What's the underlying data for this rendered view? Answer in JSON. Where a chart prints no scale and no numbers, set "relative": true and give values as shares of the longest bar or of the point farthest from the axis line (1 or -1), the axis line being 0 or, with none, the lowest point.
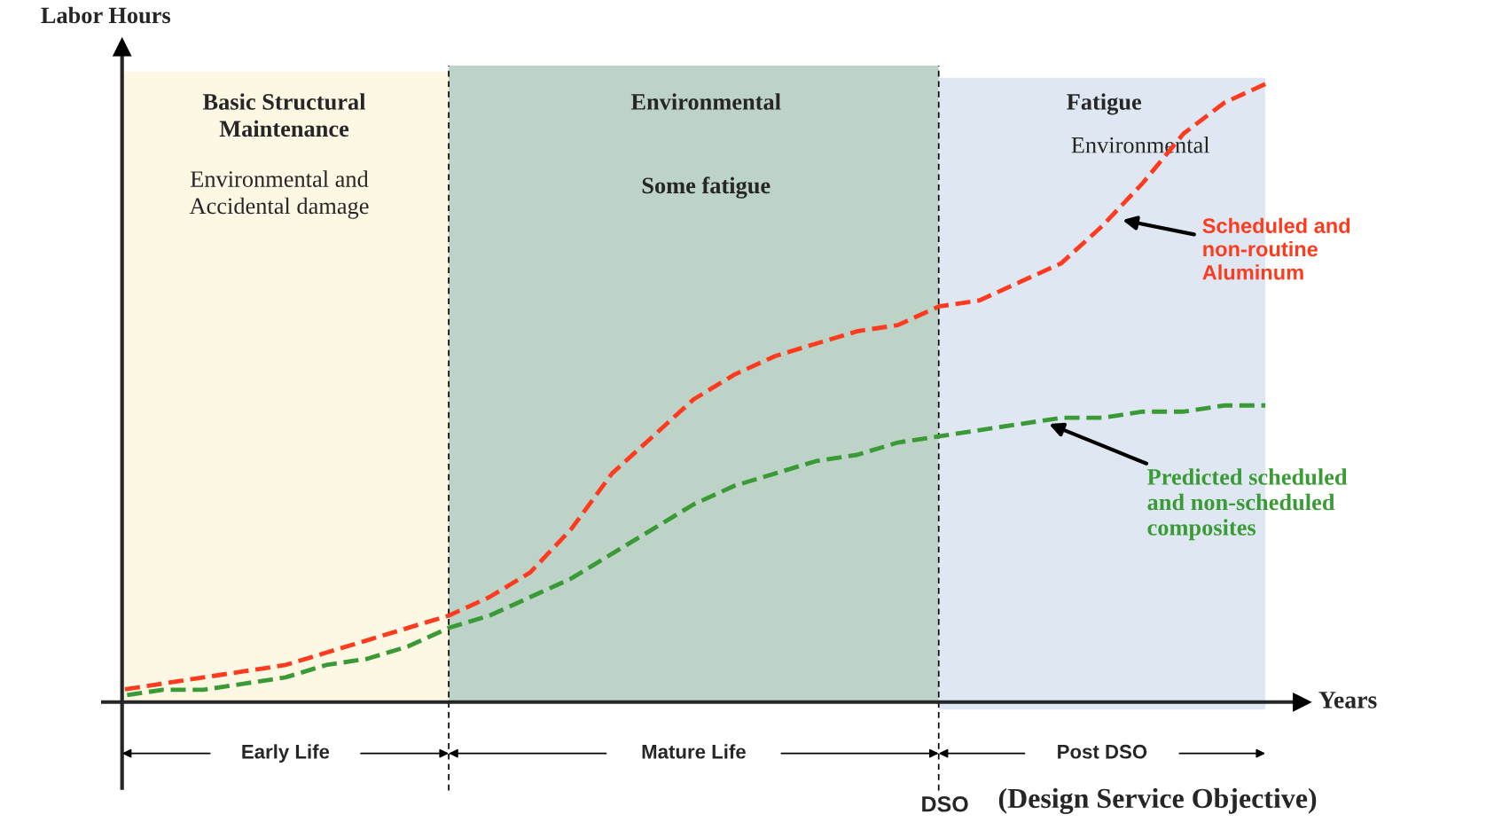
{
  "chart_data": {
    "type": "line",
    "relative": true,
    "xlabel": "Years",
    "ylabel": "Labor Hours",
    "categories": [
      null,
      null,
      null,
      null,
      null,
      null,
      null,
      null,
      null,
      null,
      null,
      null,
      null,
      null,
      null,
      null,
      null,
      null,
      null,
      null,
      null,
      null,
      null,
      null,
      null,
      null,
      null,
      null,
      null
    ],
    "series": [
      {
        "name": "Scheduled and\nnon-routine\nAluminum",
        "color": "#ff3b1f",
        "line_style": "dashed",
        "values": [
          0.02,
          0.03,
          0.04,
          0.05,
          0.06,
          0.08,
          0.1,
          0.12,
          0.14,
          0.17,
          0.21,
          0.28,
          0.37,
          0.43,
          0.49,
          0.53,
          0.56,
          0.58,
          0.6,
          0.61,
          0.64,
          0.65,
          0.68,
          0.71,
          0.77,
          0.84,
          0.92,
          0.97,
          1.0
        ]
      },
      {
        "name": "Predicted scheduled\nand non-scheduled\ncomposites",
        "color": "#3a9a35",
        "line_style": "dashed",
        "values": [
          0.01,
          0.02,
          0.02,
          0.03,
          0.04,
          0.06,
          0.07,
          0.09,
          0.12,
          0.14,
          0.17,
          0.2,
          0.24,
          0.28,
          0.32,
          0.35,
          0.37,
          0.39,
          0.4,
          0.42,
          0.43,
          0.44,
          0.45,
          0.46,
          0.46,
          0.47,
          0.47,
          0.48,
          0.48
        ]
      }
    ],
    "annotations": [
      "Basic Structural\nMaintenance",
      "Environmental",
      "Fatigue",
      "Environmental and\nAccidental damage",
      "Some fatigue",
      "Environmental",
      "Early Life",
      "Mature Life",
      "Post DSO",
      "DSO",
      "(Design Service Objective)"
    ],
    "legend": false,
    "marker": "none"
  }
}
